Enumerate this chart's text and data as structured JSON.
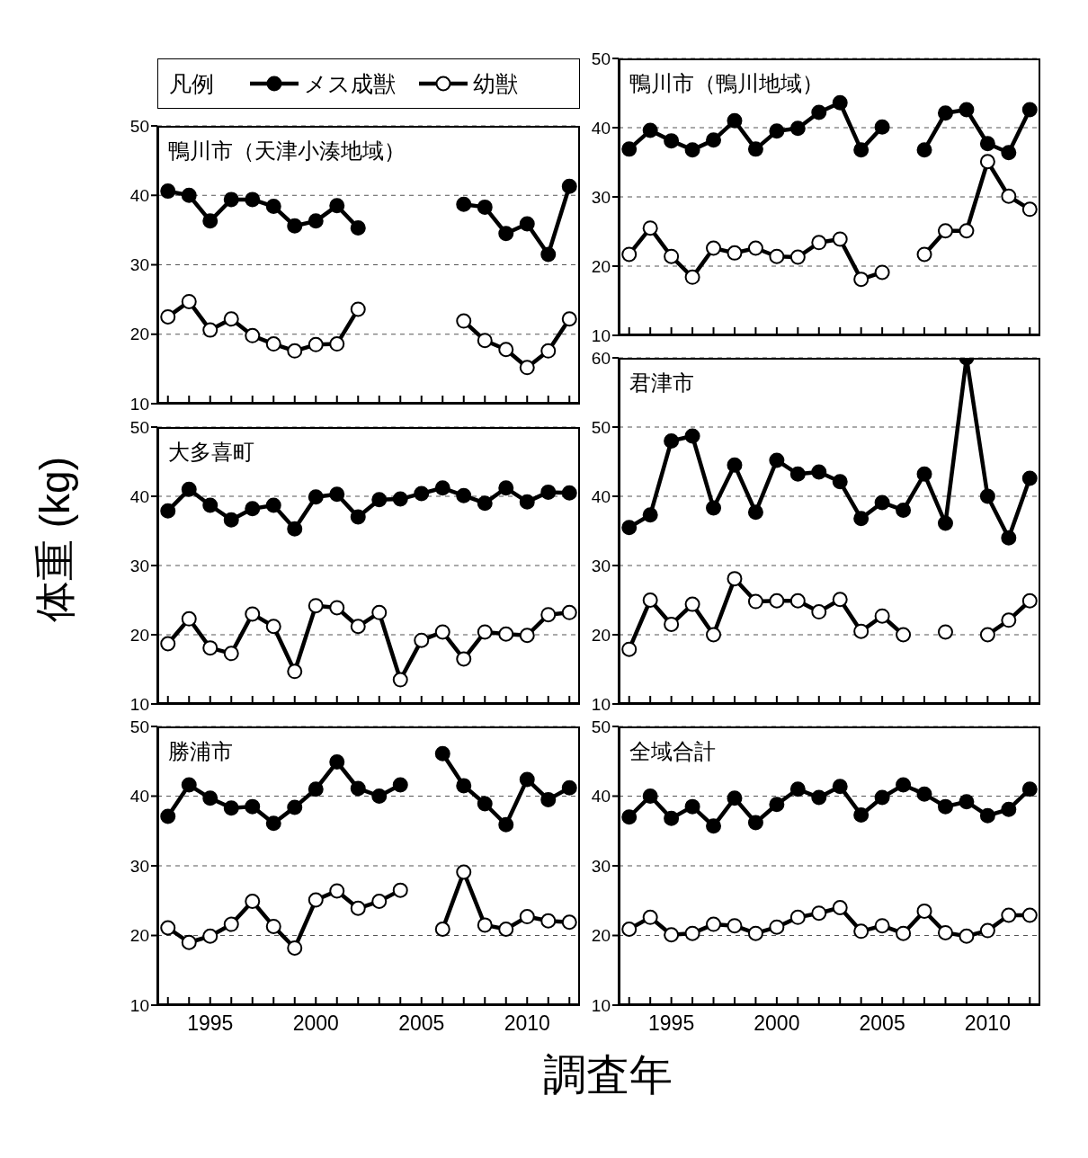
{
  "chart_data": [
    {
      "type": "line",
      "title": "鴨川市（天津小湊地域）",
      "xlabel": "調査年",
      "ylabel": "体重 (kg)",
      "legend": "top",
      "legend_title": "凡例",
      "tick_labels": "y",
      "grid": "y",
      "marker": "circle",
      "line_style": "solid",
      "x": [
        1993,
        1994,
        1995,
        1996,
        1997,
        1998,
        1999,
        2000,
        2001,
        2002,
        2003,
        2004,
        2005,
        2006,
        2007,
        2008,
        2009,
        2010,
        2011,
        2012
      ],
      "xlim": [
        1992.5,
        2012.5
      ],
      "xticks": [
        {
          "value": 1993,
          "label": null
        },
        {
          "value": 1994,
          "label": null
        },
        1995,
        {
          "value": 1996,
          "label": null
        },
        {
          "value": 1997,
          "label": null
        },
        {
          "value": 1998,
          "label": null
        },
        {
          "value": 1999,
          "label": null
        },
        2000,
        {
          "value": 2001,
          "label": null
        },
        {
          "value": 2002,
          "label": null
        },
        {
          "value": 2003,
          "label": null
        },
        {
          "value": 2004,
          "label": null
        },
        2005,
        {
          "value": 2006,
          "label": null
        },
        {
          "value": 2007,
          "label": null
        },
        {
          "value": 2008,
          "label": null
        },
        {
          "value": 2009,
          "label": null
        },
        2010,
        {
          "value": 2011,
          "label": null
        },
        {
          "value": 2012,
          "label": null
        }
      ],
      "ylim": [
        10,
        50
      ],
      "yticks": [
        10,
        20,
        30,
        40,
        50
      ],
      "series": [
        {
          "name": "メス成獣",
          "color": "#000000",
          "values": [
            40.6,
            40.0,
            36.3,
            39.4,
            39.4,
            38.4,
            35.6,
            36.3,
            38.5,
            35.3,
            null,
            null,
            null,
            null,
            38.7,
            38.3,
            34.5,
            35.9,
            31.5,
            41.3
          ]
        },
        {
          "name": "幼獣",
          "color": "#000000",
          "colors": [
            "#ffffff",
            "#ffffff",
            "#ffffff",
            "#ffffff",
            "#ffffff",
            "#ffffff",
            "#ffffff",
            "#ffffff",
            "#ffffff",
            "#ffffff",
            null,
            null,
            null,
            null,
            "#ffffff",
            "#ffffff",
            "#ffffff",
            "#ffffff",
            "#ffffff",
            "#ffffff"
          ],
          "values": [
            22.5,
            24.7,
            20.6,
            22.2,
            19.8,
            18.6,
            17.6,
            18.5,
            18.6,
            23.6,
            null,
            null,
            null,
            null,
            21.9,
            19.1,
            17.8,
            15.2,
            17.6,
            22.2
          ]
        }
      ]
    },
    {
      "type": "line",
      "title": "鴨川市（鴨川地域）",
      "tick_labels": "y",
      "grid": "y",
      "marker": "circle",
      "line_style": "solid",
      "x": [
        1993,
        1994,
        1995,
        1996,
        1997,
        1998,
        1999,
        2000,
        2001,
        2002,
        2003,
        2004,
        2005,
        2006,
        2007,
        2008,
        2009,
        2010,
        2011,
        2012
      ],
      "xlim": [
        1992.5,
        2012.5
      ],
      "xticks": [
        {
          "value": 1993,
          "label": null
        },
        {
          "value": 1994,
          "label": null
        },
        1995,
        {
          "value": 1996,
          "label": null
        },
        {
          "value": 1997,
          "label": null
        },
        {
          "value": 1998,
          "label": null
        },
        {
          "value": 1999,
          "label": null
        },
        2000,
        {
          "value": 2001,
          "label": null
        },
        {
          "value": 2002,
          "label": null
        },
        {
          "value": 2003,
          "label": null
        },
        {
          "value": 2004,
          "label": null
        },
        2005,
        {
          "value": 2006,
          "label": null
        },
        {
          "value": 2007,
          "label": null
        },
        {
          "value": 2008,
          "label": null
        },
        {
          "value": 2009,
          "label": null
        },
        2010,
        {
          "value": 2011,
          "label": null
        },
        {
          "value": 2012,
          "label": null
        }
      ],
      "ylim": [
        10,
        50
      ],
      "yticks": [
        10,
        20,
        30,
        40,
        50
      ],
      "series": [
        {
          "color": "#000000",
          "values": [
            36.9,
            39.6,
            38.1,
            36.8,
            38.2,
            41.0,
            36.9,
            39.5,
            39.9,
            42.2,
            43.6,
            36.8,
            40.1,
            null,
            36.8,
            42.1,
            42.6,
            37.7,
            36.4,
            42.6
          ]
        },
        {
          "color": "#000000",
          "colors": [
            "#ffffff",
            "#ffffff",
            "#ffffff",
            "#ffffff",
            "#ffffff",
            "#ffffff",
            "#ffffff",
            "#ffffff",
            "#ffffff",
            "#ffffff",
            "#ffffff",
            "#ffffff",
            "#ffffff",
            null,
            "#ffffff",
            "#ffffff",
            "#ffffff",
            "#ffffff",
            "#ffffff",
            "#ffffff"
          ],
          "values": [
            21.7,
            25.5,
            21.4,
            18.4,
            22.6,
            21.9,
            22.6,
            21.4,
            21.3,
            23.4,
            23.9,
            18.1,
            19.1,
            null,
            21.7,
            25.1,
            25.1,
            35.1,
            30.1,
            28.2
          ]
        }
      ]
    },
    {
      "type": "line",
      "title": "大多喜町",
      "tick_labels": "y",
      "grid": "y",
      "marker": "circle",
      "line_style": "solid",
      "x": [
        1993,
        1994,
        1995,
        1996,
        1997,
        1998,
        1999,
        2000,
        2001,
        2002,
        2003,
        2004,
        2005,
        2006,
        2007,
        2008,
        2009,
        2010,
        2011,
        2012
      ],
      "xlim": [
        1992.5,
        2012.5
      ],
      "xticks": [
        {
          "value": 1993,
          "label": null
        },
        {
          "value": 1994,
          "label": null
        },
        1995,
        {
          "value": 1996,
          "label": null
        },
        {
          "value": 1997,
          "label": null
        },
        {
          "value": 1998,
          "label": null
        },
        {
          "value": 1999,
          "label": null
        },
        2000,
        {
          "value": 2001,
          "label": null
        },
        {
          "value": 2002,
          "label": null
        },
        {
          "value": 2003,
          "label": null
        },
        {
          "value": 2004,
          "label": null
        },
        2005,
        {
          "value": 2006,
          "label": null
        },
        {
          "value": 2007,
          "label": null
        },
        {
          "value": 2008,
          "label": null
        },
        {
          "value": 2009,
          "label": null
        },
        2010,
        {
          "value": 2011,
          "label": null
        },
        {
          "value": 2012,
          "label": null
        }
      ],
      "ylim": [
        10,
        50
      ],
      "yticks": [
        10,
        20,
        30,
        40,
        50
      ],
      "series": [
        {
          "color": "#000000",
          "values": [
            37.9,
            41.0,
            38.7,
            36.6,
            38.2,
            38.7,
            35.3,
            39.9,
            40.3,
            37.0,
            39.5,
            39.6,
            40.4,
            41.2,
            40.1,
            39.0,
            41.2,
            39.2,
            40.6,
            40.5
          ]
        },
        {
          "color": "#000000",
          "colors": [
            "#ffffff",
            "#ffffff",
            "#ffffff",
            "#ffffff",
            "#ffffff",
            "#ffffff",
            "#ffffff",
            "#ffffff",
            "#ffffff",
            "#ffffff",
            "#ffffff",
            "#ffffff",
            "#ffffff",
            "#ffffff",
            "#ffffff",
            "#ffffff",
            "#ffffff",
            "#ffffff",
            "#ffffff",
            "#ffffff"
          ],
          "values": [
            18.7,
            22.3,
            18.1,
            17.3,
            23.0,
            21.2,
            14.7,
            24.2,
            23.9,
            21.2,
            23.2,
            13.5,
            19.2,
            20.4,
            16.5,
            20.4,
            20.1,
            19.9,
            22.9,
            23.2
          ]
        }
      ]
    },
    {
      "type": "line",
      "title": "君津市",
      "tick_labels": "y",
      "grid": "y",
      "marker": "circle",
      "line_style": "solid",
      "x": [
        1993,
        1994,
        1995,
        1996,
        1997,
        1998,
        1999,
        2000,
        2001,
        2002,
        2003,
        2004,
        2005,
        2006,
        2007,
        2008,
        2009,
        2010,
        2011,
        2012
      ],
      "xlim": [
        1992.5,
        2012.5
      ],
      "xticks": [
        {
          "value": 1993,
          "label": null
        },
        {
          "value": 1994,
          "label": null
        },
        1995,
        {
          "value": 1996,
          "label": null
        },
        {
          "value": 1997,
          "label": null
        },
        {
          "value": 1998,
          "label": null
        },
        {
          "value": 1999,
          "label": null
        },
        2000,
        {
          "value": 2001,
          "label": null
        },
        {
          "value": 2002,
          "label": null
        },
        {
          "value": 2003,
          "label": null
        },
        {
          "value": 2004,
          "label": null
        },
        2005,
        {
          "value": 2006,
          "label": null
        },
        {
          "value": 2007,
          "label": null
        },
        {
          "value": 2008,
          "label": null
        },
        {
          "value": 2009,
          "label": null
        },
        2010,
        {
          "value": 2011,
          "label": null
        },
        {
          "value": 2012,
          "label": null
        }
      ],
      "ylim": [
        10,
        60
      ],
      "yticks": [
        10,
        20,
        30,
        40,
        50,
        60
      ],
      "series": [
        {
          "color": "#000000",
          "values": [
            35.5,
            37.3,
            48.0,
            48.7,
            38.3,
            44.5,
            37.7,
            45.2,
            43.2,
            43.5,
            42.1,
            36.8,
            39.1,
            38.0,
            43.2,
            36.1,
            60.0,
            40.0,
            34.0,
            42.6
          ]
        },
        {
          "color": "#000000",
          "colors": [
            "#ffffff",
            "#ffffff",
            "#ffffff",
            "#ffffff",
            "#ffffff",
            "#ffffff",
            "#ffffff",
            "#ffffff",
            "#ffffff",
            "#ffffff",
            "#ffffff",
            "#ffffff",
            "#ffffff",
            "#ffffff",
            null,
            "#ffffff",
            null,
            "#ffffff",
            "#ffffff",
            "#ffffff"
          ],
          "values": [
            17.9,
            25.0,
            21.5,
            24.4,
            20.0,
            28.1,
            24.8,
            24.9,
            24.9,
            23.3,
            25.1,
            20.5,
            22.7,
            20.0,
            null,
            20.4,
            null,
            20.0,
            22.1,
            24.9
          ]
        }
      ]
    },
    {
      "type": "line",
      "title": "勝浦市",
      "grid": "y",
      "marker": "circle",
      "line_style": "solid",
      "x": [
        1993,
        1994,
        1995,
        1996,
        1997,
        1998,
        1999,
        2000,
        2001,
        2002,
        2003,
        2004,
        2005,
        2006,
        2007,
        2008,
        2009,
        2010,
        2011,
        2012
      ],
      "xlim": [
        1992.5,
        2012.5
      ],
      "xticks": [
        {
          "value": 1993,
          "label": null
        },
        {
          "value": 1994,
          "label": null
        },
        1995,
        {
          "value": 1996,
          "label": null
        },
        {
          "value": 1997,
          "label": null
        },
        {
          "value": 1998,
          "label": null
        },
        {
          "value": 1999,
          "label": null
        },
        2000,
        {
          "value": 2001,
          "label": null
        },
        {
          "value": 2002,
          "label": null
        },
        {
          "value": 2003,
          "label": null
        },
        {
          "value": 2004,
          "label": null
        },
        2005,
        {
          "value": 2006,
          "label": null
        },
        {
          "value": 2007,
          "label": null
        },
        {
          "value": 2008,
          "label": null
        },
        {
          "value": 2009,
          "label": null
        },
        2010,
        {
          "value": 2011,
          "label": null
        },
        {
          "value": 2012,
          "label": null
        }
      ],
      "ylim": [
        10,
        50
      ],
      "yticks": [
        10,
        20,
        30,
        40,
        50
      ],
      "series": [
        {
          "color": "#000000",
          "values": [
            37.1,
            41.6,
            39.7,
            38.3,
            38.5,
            36.1,
            38.4,
            41.0,
            44.9,
            41.1,
            40.0,
            41.6,
            null,
            46.1,
            41.5,
            38.9,
            35.9,
            42.4,
            39.5,
            41.2
          ]
        },
        {
          "color": "#000000",
          "colors": [
            "#ffffff",
            "#ffffff",
            "#ffffff",
            "#ffffff",
            "#ffffff",
            "#ffffff",
            "#ffffff",
            "#ffffff",
            "#ffffff",
            "#ffffff",
            "#ffffff",
            "#ffffff",
            null,
            "#ffffff",
            "#ffffff",
            "#ffffff",
            "#ffffff",
            "#ffffff",
            "#ffffff",
            "#ffffff"
          ],
          "values": [
            21.1,
            19.0,
            19.9,
            21.6,
            24.9,
            21.3,
            18.2,
            25.1,
            26.4,
            23.9,
            24.9,
            26.5,
            null,
            20.9,
            29.1,
            21.5,
            20.9,
            22.7,
            22.1,
            21.9
          ]
        }
      ]
    },
    {
      "type": "line",
      "title": "全域合計",
      "grid": "y",
      "marker": "circle",
      "line_style": "solid",
      "x": [
        1993,
        1994,
        1995,
        1996,
        1997,
        1998,
        1999,
        2000,
        2001,
        2002,
        2003,
        2004,
        2005,
        2006,
        2007,
        2008,
        2009,
        2010,
        2011,
        2012
      ],
      "xlim": [
        1992.5,
        2012.5
      ],
      "xticks": [
        {
          "value": 1993,
          "label": null
        },
        {
          "value": 1994,
          "label": null
        },
        1995,
        {
          "value": 1996,
          "label": null
        },
        {
          "value": 1997,
          "label": null
        },
        {
          "value": 1998,
          "label": null
        },
        {
          "value": 1999,
          "label": null
        },
        2000,
        {
          "value": 2001,
          "label": null
        },
        {
          "value": 2002,
          "label": null
        },
        {
          "value": 2003,
          "label": null
        },
        {
          "value": 2004,
          "label": null
        },
        2005,
        {
          "value": 2006,
          "label": null
        },
        {
          "value": 2007,
          "label": null
        },
        {
          "value": 2008,
          "label": null
        },
        {
          "value": 2009,
          "label": null
        },
        2010,
        {
          "value": 2011,
          "label": null
        },
        {
          "value": 2012,
          "label": null
        }
      ],
      "ylim": [
        10,
        50
      ],
      "yticks": [
        10,
        20,
        30,
        40,
        50
      ],
      "series": [
        {
          "color": "#000000",
          "values": [
            37.0,
            40.0,
            36.8,
            38.5,
            35.7,
            39.7,
            36.2,
            38.8,
            41.0,
            39.8,
            41.4,
            37.3,
            39.8,
            41.6,
            40.3,
            38.5,
            39.2,
            37.2,
            38.1,
            41.0
          ]
        },
        {
          "color": "#000000",
          "colors": [
            "#ffffff",
            "#ffffff",
            "#ffffff",
            "#ffffff",
            "#ffffff",
            "#ffffff",
            "#ffffff",
            "#ffffff",
            "#ffffff",
            "#ffffff",
            "#ffffff",
            "#ffffff",
            "#ffffff",
            "#ffffff",
            "#ffffff",
            "#ffffff",
            "#ffffff",
            "#ffffff",
            "#ffffff",
            "#ffffff"
          ],
          "values": [
            20.9,
            22.6,
            20.1,
            20.3,
            21.6,
            21.4,
            20.3,
            21.2,
            22.6,
            23.2,
            24.0,
            20.6,
            21.4,
            20.3,
            23.5,
            20.4,
            19.9,
            20.7,
            22.9,
            22.9
          ]
        }
      ]
    }
  ]
}
